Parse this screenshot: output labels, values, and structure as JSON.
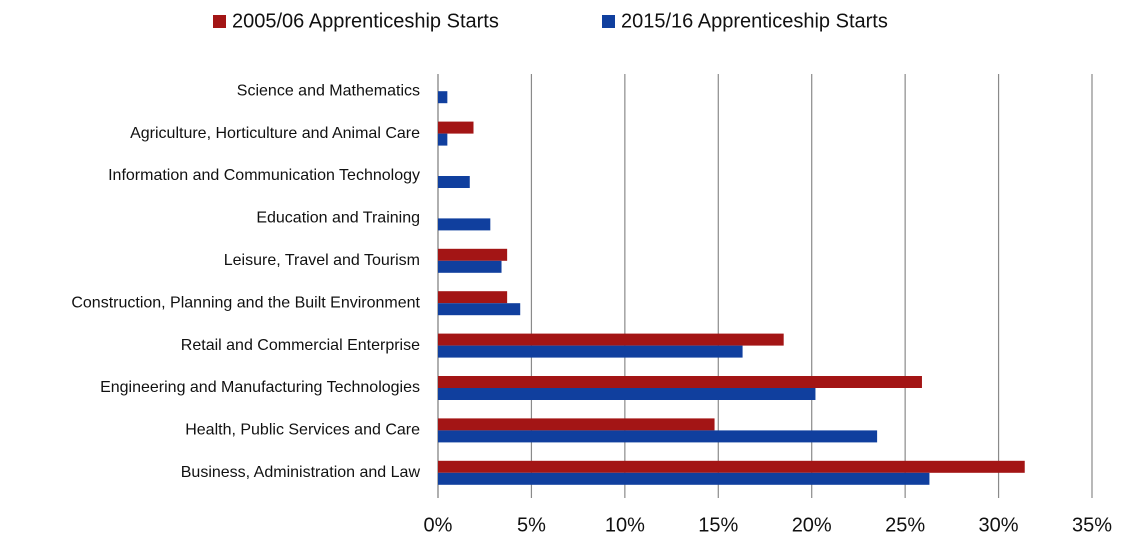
{
  "chart_data": {
    "type": "bar",
    "orientation": "horizontal",
    "categories": [
      "Science and Mathematics",
      "Agriculture, Horticulture and Animal Care",
      "Information and Communication Technology",
      "Education and Training",
      "Leisure, Travel and Tourism",
      "Construction, Planning and the Built Environment",
      "Retail and Commercial Enterprise",
      "Engineering and Manufacturing Technologies",
      "Health, Public Services and Care",
      "Business, Administration and Law"
    ],
    "series": [
      {
        "name": "2005/06 Apprenticeship Starts",
        "color": "#a31515",
        "values": [
          0,
          1.9,
          0,
          0,
          3.7,
          3.7,
          18.5,
          25.9,
          14.8,
          31.4
        ]
      },
      {
        "name": "2015/16 Apprenticeship Starts",
        "color": "#103f9e",
        "values": [
          0.5,
          0.5,
          1.7,
          2.8,
          3.4,
          4.4,
          16.3,
          20.2,
          23.5,
          26.3
        ]
      }
    ],
    "xlim": [
      0,
      35
    ],
    "xticks": [
      {
        "value": 0,
        "label": "0%"
      },
      {
        "value": 5,
        "label": "5%"
      },
      {
        "value": 10,
        "label": "10%"
      },
      {
        "value": 15,
        "label": "15%"
      },
      {
        "value": 20,
        "label": "20%"
      },
      {
        "value": 25,
        "label": "25%"
      },
      {
        "value": 30,
        "label": "30%"
      },
      {
        "value": 35,
        "label": "35%"
      }
    ],
    "grid": true,
    "legend": "top"
  }
}
